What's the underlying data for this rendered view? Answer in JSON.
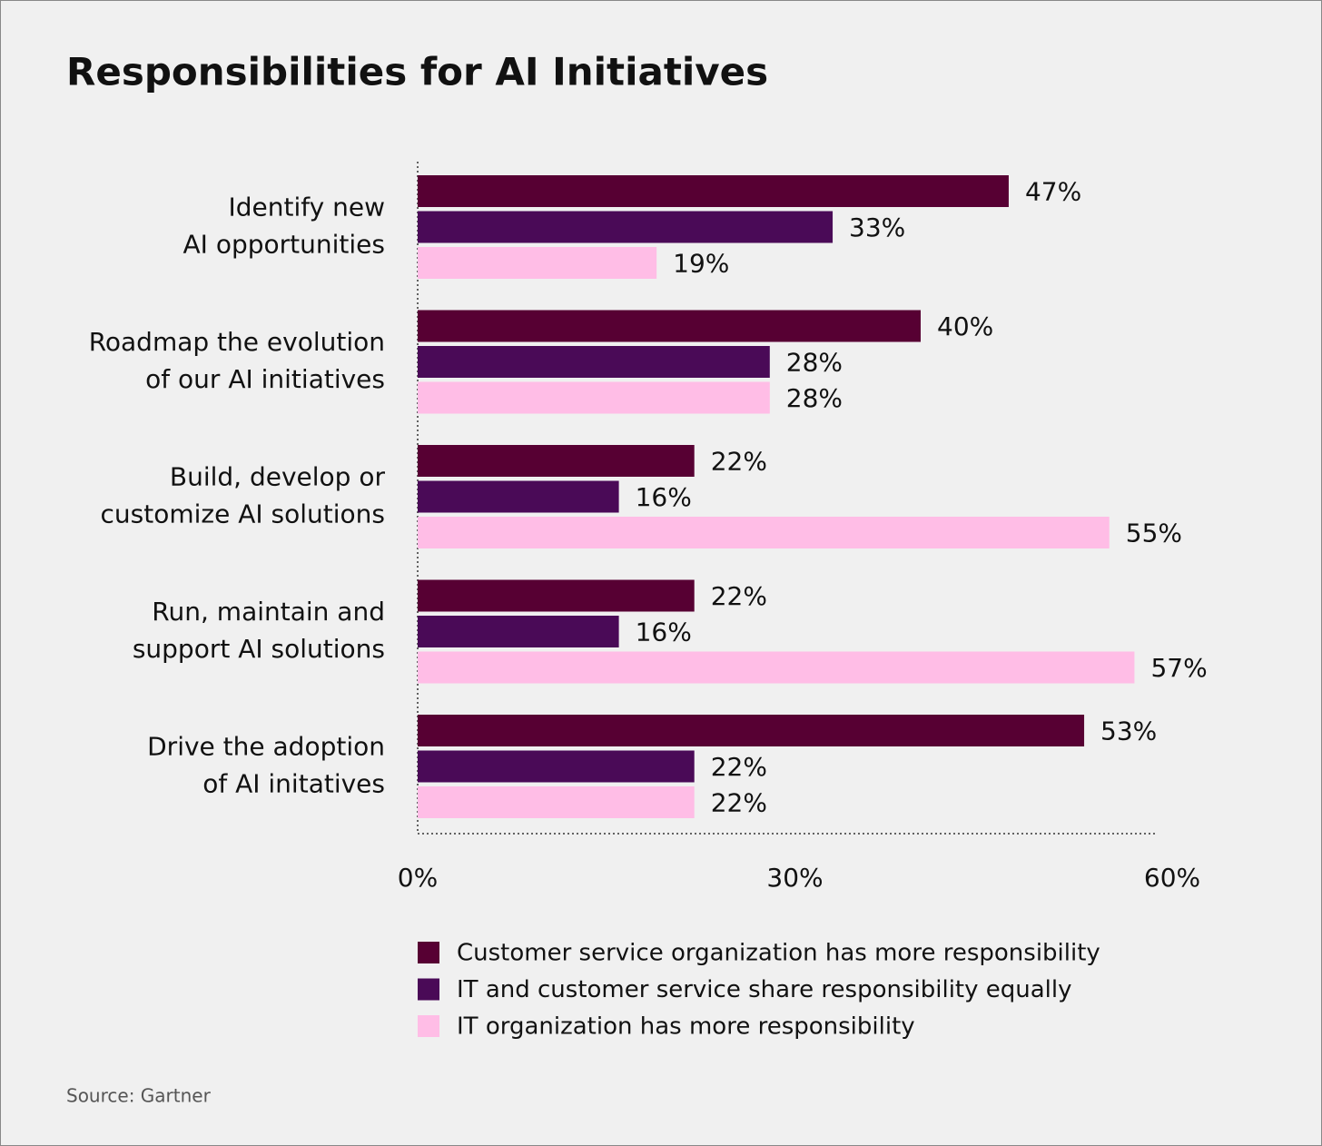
{
  "chart_data": {
    "type": "bar",
    "orientation": "horizontal",
    "title": "Responsibilities for AI Initiatives",
    "categories": [
      [
        "Identify new",
        "AI opportunities"
      ],
      [
        "Roadmap the evolution",
        "of our AI initiatives"
      ],
      [
        "Build, develop or",
        "customize AI solutions"
      ],
      [
        "Run, maintain and",
        "support AI solutions"
      ],
      [
        "Drive the adoption",
        "of AI initatives"
      ]
    ],
    "series": [
      {
        "name": "Customer service organization has more responsibility",
        "color": "#570033",
        "values": [
          47,
          40,
          22,
          22,
          53
        ],
        "value_labels": [
          "47%",
          "40%",
          "22%",
          "22%",
          "53%"
        ]
      },
      {
        "name": "IT and customer service share responsibility equally",
        "color": "#4a0a57",
        "values": [
          33,
          28,
          16,
          16,
          22
        ],
        "value_labels": [
          "33%",
          "28%",
          "16%",
          "16%",
          "22%"
        ]
      },
      {
        "name": "IT organization has more responsibility",
        "color": "#ffbde6",
        "values": [
          19,
          28,
          55,
          57,
          22
        ],
        "value_labels": [
          "19%",
          "28%",
          "55%",
          "57%",
          "22%"
        ]
      }
    ],
    "xlim": [
      0,
      60
    ],
    "xticks": [
      {
        "value": 0,
        "label": "0%"
      },
      {
        "value": 30,
        "label": "30%"
      },
      {
        "value": 60,
        "label": "60%"
      }
    ],
    "grid": false,
    "legend": "bottom",
    "source": "Source: Gartner"
  }
}
